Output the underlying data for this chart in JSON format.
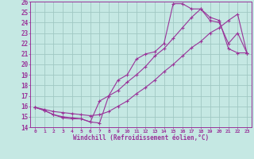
{
  "xlabel": "Windchill (Refroidissement éolien,°C)",
  "bg_color": "#c5e8e3",
  "grid_color": "#a0c8c3",
  "line_color": "#993399",
  "xlim": [
    -0.5,
    23.5
  ],
  "ylim": [
    14,
    26
  ],
  "xticks": [
    0,
    1,
    2,
    3,
    4,
    5,
    6,
    7,
    8,
    9,
    10,
    11,
    12,
    13,
    14,
    15,
    16,
    17,
    18,
    19,
    20,
    21,
    22,
    23
  ],
  "yticks": [
    14,
    15,
    16,
    17,
    18,
    19,
    20,
    21,
    22,
    23,
    24,
    25,
    26
  ],
  "line1_x": [
    0,
    1,
    2,
    3,
    4,
    5,
    6,
    7,
    8,
    9,
    10,
    11,
    12,
    13,
    14,
    15,
    16,
    17,
    18,
    19,
    20,
    21,
    22,
    23
  ],
  "line1_y": [
    15.9,
    15.6,
    15.2,
    14.9,
    14.8,
    14.8,
    14.5,
    14.4,
    17.0,
    18.5,
    19.0,
    20.5,
    21.0,
    21.2,
    22.0,
    25.8,
    25.8,
    25.3,
    25.3,
    24.2,
    24.0,
    22.0,
    23.0,
    21.1
  ],
  "line2_x": [
    0,
    1,
    2,
    3,
    4,
    5,
    6,
    7,
    8,
    9,
    10,
    11,
    12,
    13,
    14,
    15,
    16,
    17,
    18,
    19,
    20,
    21,
    22,
    23
  ],
  "line2_y": [
    15.9,
    15.6,
    15.2,
    15.0,
    14.9,
    14.8,
    14.5,
    16.5,
    17.0,
    17.5,
    18.3,
    19.0,
    19.8,
    20.8,
    21.5,
    22.5,
    23.5,
    24.5,
    25.3,
    24.5,
    24.2,
    21.5,
    21.1,
    21.1
  ],
  "line3_x": [
    0,
    1,
    2,
    3,
    4,
    5,
    6,
    7,
    8,
    9,
    10,
    11,
    12,
    13,
    14,
    15,
    16,
    17,
    18,
    19,
    20,
    21,
    22,
    23
  ],
  "line3_y": [
    15.9,
    15.7,
    15.5,
    15.4,
    15.3,
    15.2,
    15.1,
    15.2,
    15.5,
    16.0,
    16.5,
    17.2,
    17.8,
    18.5,
    19.3,
    20.0,
    20.8,
    21.6,
    22.2,
    23.0,
    23.5,
    24.2,
    24.8,
    21.1
  ]
}
